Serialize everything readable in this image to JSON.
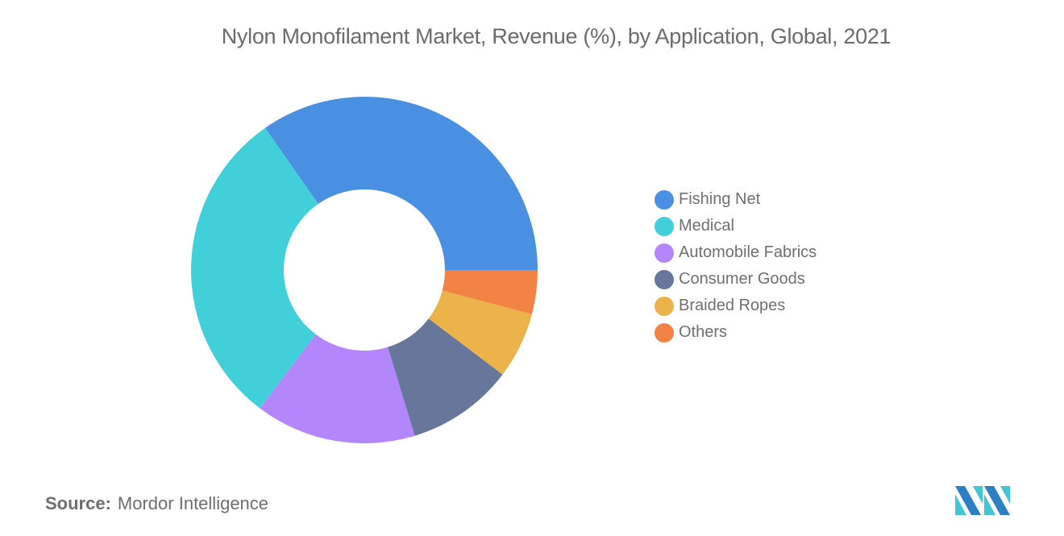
{
  "chart_data": {
    "type": "pie",
    "variant": "donut",
    "title": "Nylon Monofilament Market, Revenue (%), by Application, Global, 2021",
    "categories": [
      "Fishing Net",
      "Medical",
      "Automobile Fabrics",
      "Consumer Goods",
      "Braided Ropes",
      "Others"
    ],
    "values": [
      34.7,
      30.0,
      15.0,
      10.0,
      6.2,
      4.1
    ],
    "colors": [
      "#4a90e2",
      "#41d0d9",
      "#b386fb",
      "#66779b",
      "#ecb34b",
      "#f28344"
    ],
    "legend_position": "right",
    "data_labels": false
  },
  "title": "Nylon Monofilament Market, Revenue (%), by Application, Global, 2021",
  "legend": [
    {
      "label": "Fishing Net",
      "color": "#4a90e2"
    },
    {
      "label": "Medical",
      "color": "#41d0d9"
    },
    {
      "label": "Automobile Fabrics",
      "color": "#b386fb"
    },
    {
      "label": "Consumer Goods",
      "color": "#66779b"
    },
    {
      "label": "Braided Ropes",
      "color": "#ecb34b"
    },
    {
      "label": "Others",
      "color": "#f28344"
    }
  ],
  "source": {
    "key": "Source:",
    "value": "Mordor Intelligence"
  },
  "logo": {
    "icon": "mordor-intelligence-logo-icon"
  }
}
